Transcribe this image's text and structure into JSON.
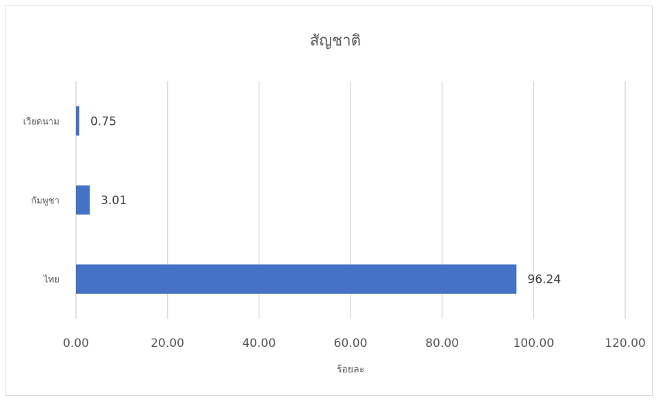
{
  "chart_data": {
    "type": "bar",
    "orientation": "horizontal",
    "title": "สัญชาติ",
    "xlabel": "ร้อยละ",
    "ylabel": "",
    "categories": [
      "เวียดนาม",
      "กัมพูชา",
      "ไทย"
    ],
    "values": [
      0.75,
      3.01,
      96.24
    ],
    "data_labels": [
      "0.75",
      "3.01",
      "96.24"
    ],
    "xlim": [
      0,
      120
    ],
    "x_ticks": [
      "0.00",
      "20.00",
      "40.00",
      "60.00",
      "80.00",
      "100.00",
      "120.00"
    ],
    "x_tick_values": [
      0,
      20,
      40,
      60,
      80,
      100,
      120
    ],
    "grid": true,
    "legend": "none",
    "colors": {
      "bar": "#4472c4",
      "grid": "#d9d9d9",
      "text": "#595959"
    }
  }
}
